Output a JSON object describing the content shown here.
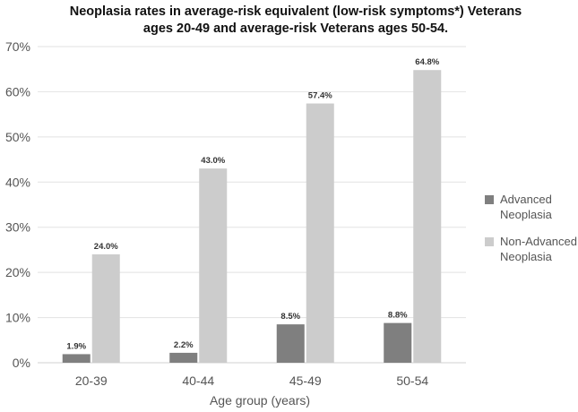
{
  "chart_data": {
    "type": "bar",
    "title_lines": [
      "Neoplasia rates in average-risk equivalent (low-risk symptoms*) Veterans",
      "ages 20-49 and average-risk Veterans ages 50-54."
    ],
    "xlabel": "Age group (years)",
    "ylabel": "",
    "categories": [
      "20-39",
      "40-44",
      "45-49",
      "50-54"
    ],
    "ylim": [
      0,
      70
    ],
    "yticks": [
      0,
      10,
      20,
      30,
      40,
      50,
      60,
      70
    ],
    "ytick_labels": [
      "0%",
      "10%",
      "20%",
      "30%",
      "40%",
      "50%",
      "60%",
      "70%"
    ],
    "grid": true,
    "legend_position": "right",
    "series": [
      {
        "name_lines": [
          "Advanced",
          "Neoplasia"
        ],
        "color": "#7f7f7f",
        "values": [
          1.9,
          2.2,
          8.5,
          8.8
        ],
        "labels": [
          "1.9%",
          "2.2%",
          "8.5%",
          "8.8%"
        ]
      },
      {
        "name_lines": [
          "Non-Advanced",
          "Neoplasia"
        ],
        "color": "#cccccc",
        "values": [
          24.0,
          43.0,
          57.4,
          64.8
        ],
        "labels": [
          "24.0%",
          "43.0%",
          "57.4%",
          "64.8%"
        ]
      }
    ]
  }
}
